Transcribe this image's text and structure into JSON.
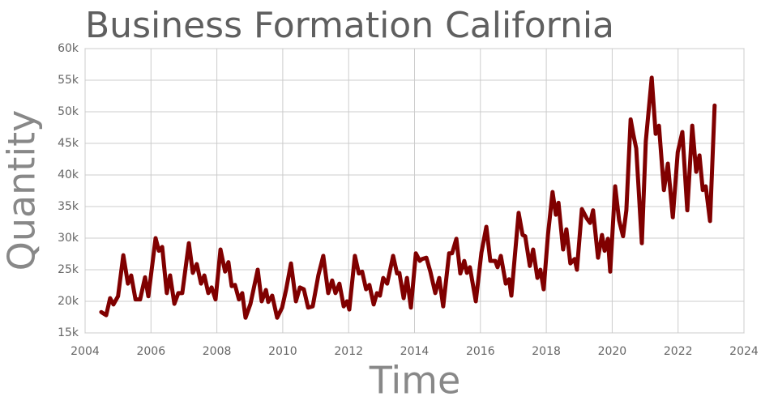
{
  "chart_data": {
    "type": "line",
    "title": "Business Formation California",
    "x_label": "Time",
    "y_label": "Quantity",
    "color": "#800000",
    "grid": true,
    "xlim": [
      2004,
      2024
    ],
    "xticks": [
      2004,
      2006,
      2008,
      2010,
      2012,
      2014,
      2016,
      2018,
      2020,
      2022,
      2024
    ],
    "ylim": [
      15000,
      60000
    ],
    "yticks": [
      {
        "value": 15000,
        "label": "15k"
      },
      {
        "value": 20000,
        "label": "20k"
      },
      {
        "value": 25000,
        "label": "25k"
      },
      {
        "value": 30000,
        "label": "30k"
      },
      {
        "value": 35000,
        "label": "35k"
      },
      {
        "value": 40000,
        "label": "40k"
      },
      {
        "value": 45000,
        "label": "45k"
      },
      {
        "value": 50000,
        "label": "50k"
      },
      {
        "value": 55000,
        "label": "55k"
      },
      {
        "value": 60000,
        "label": "60k"
      }
    ],
    "x": [
      2004.49,
      2004.64,
      2004.76,
      2004.86,
      2005.0,
      2005.16,
      2005.3,
      2005.4,
      2005.53,
      2005.67,
      2005.82,
      2005.92,
      2006.14,
      2006.24,
      2006.34,
      2006.48,
      2006.58,
      2006.71,
      2006.83,
      2006.95,
      2007.15,
      2007.27,
      2007.39,
      2007.52,
      2007.62,
      2007.74,
      2007.84,
      2007.96,
      2008.11,
      2008.25,
      2008.35,
      2008.45,
      2008.55,
      2008.67,
      2008.77,
      2008.87,
      2009.02,
      2009.24,
      2009.36,
      2009.49,
      2009.56,
      2009.68,
      2009.83,
      2009.98,
      2010.1,
      2010.25,
      2010.4,
      2010.52,
      2010.64,
      2010.77,
      2010.91,
      2011.08,
      2011.23,
      2011.38,
      2011.5,
      2011.6,
      2011.72,
      2011.85,
      2011.95,
      2012.02,
      2012.19,
      2012.31,
      2012.41,
      2012.53,
      2012.63,
      2012.76,
      2012.86,
      2012.95,
      2013.05,
      2013.17,
      2013.35,
      2013.47,
      2013.54,
      2013.67,
      2013.77,
      2013.89,
      2014.04,
      2014.16,
      2014.23,
      2014.36,
      2014.48,
      2014.63,
      2014.75,
      2014.87,
      2015.05,
      2015.14,
      2015.27,
      2015.39,
      2015.51,
      2015.59,
      2015.68,
      2015.86,
      2016.03,
      2016.18,
      2016.3,
      2016.45,
      2016.52,
      2016.62,
      2016.77,
      2016.87,
      2016.94,
      2017.16,
      2017.28,
      2017.36,
      2017.5,
      2017.6,
      2017.73,
      2017.82,
      2017.92,
      2018.05,
      2018.19,
      2018.29,
      2018.37,
      2018.51,
      2018.61,
      2018.73,
      2018.86,
      2018.93,
      2019.08,
      2019.23,
      2019.33,
      2019.42,
      2019.57,
      2019.69,
      2019.77,
      2019.87,
      2019.94,
      2020.09,
      2020.21,
      2020.33,
      2020.43,
      2020.56,
      2020.65,
      2020.73,
      2020.9,
      2021.02,
      2021.2,
      2021.32,
      2021.42,
      2021.57,
      2021.69,
      2021.84,
      2021.99,
      2022.13,
      2022.28,
      2022.43,
      2022.55,
      2022.65,
      2022.75,
      2022.84,
      2022.97,
      2023.11
    ],
    "values": [
      18300,
      17800,
      20500,
      19500,
      20800,
      27300,
      22800,
      24100,
      20300,
      20300,
      23800,
      20800,
      30000,
      28000,
      28600,
      21300,
      24100,
      19600,
      21300,
      21300,
      29200,
      24500,
      25900,
      22800,
      24100,
      21300,
      22200,
      20300,
      28200,
      24700,
      26200,
      22400,
      22600,
      20300,
      21300,
      17400,
      19600,
      25000,
      20000,
      21800,
      19900,
      20900,
      17400,
      19000,
      21800,
      26000,
      20000,
      22200,
      21900,
      19000,
      19200,
      24100,
      27200,
      21300,
      23300,
      21300,
      22800,
      19200,
      20000,
      18700,
      27200,
      24400,
      24700,
      21900,
      22600,
      19500,
      21300,
      20900,
      23700,
      22800,
      27200,
      24400,
      24500,
      20500,
      23700,
      19000,
      27600,
      26400,
      26700,
      26900,
      24700,
      21300,
      23700,
      19200,
      27600,
      27600,
      29900,
      24400,
      26400,
      24500,
      25400,
      20000,
      27700,
      31800,
      26400,
      26400,
      25400,
      27200,
      22800,
      23500,
      20900,
      34000,
      30500,
      30300,
      25600,
      28200,
      23700,
      25000,
      21900,
      30500,
      37300,
      33700,
      35600,
      28200,
      31400,
      26000,
      26700,
      25000,
      34600,
      33100,
      32400,
      34400,
      26900,
      30500,
      28000,
      29900,
      24700,
      38200,
      32800,
      30300,
      34400,
      48800,
      46200,
      44200,
      29200,
      45300,
      55400,
      46500,
      47800,
      37600,
      41800,
      33300,
      43600,
      46800,
      34400,
      47800,
      40500,
      43100,
      37600,
      38200,
      32700,
      51000
    ]
  }
}
